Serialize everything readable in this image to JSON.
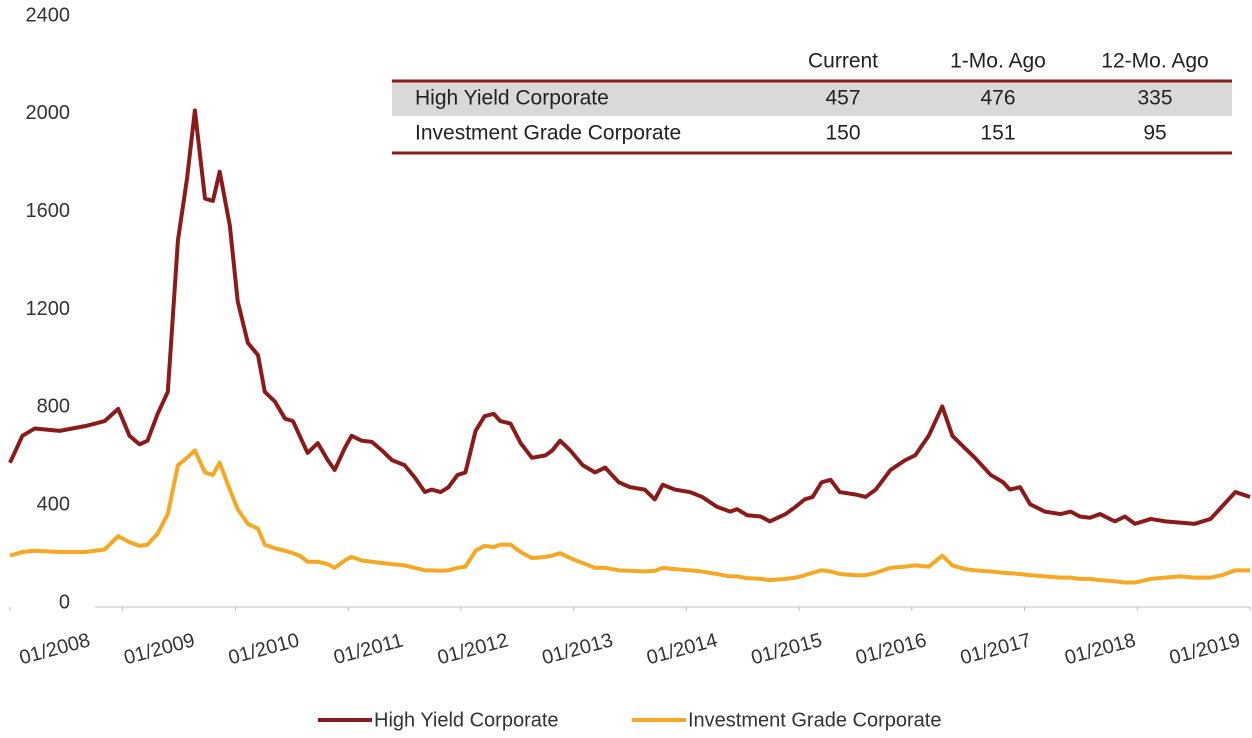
{
  "chart_data": {
    "type": "line",
    "x": [
      2008.0,
      2008.11,
      2008.22,
      2008.44,
      2008.67,
      2008.84,
      2008.96,
      2009.06,
      2009.15,
      2009.22,
      2009.31,
      2009.4,
      2009.49,
      2009.57,
      2009.64,
      2009.73,
      2009.8,
      2009.86,
      2009.95,
      2010.02,
      2010.11,
      2010.2,
      2010.26,
      2010.35,
      2010.44,
      2010.51,
      2010.57,
      2010.64,
      2010.73,
      2010.82,
      2010.88,
      2010.97,
      2011.03,
      2011.12,
      2011.21,
      2011.3,
      2011.39,
      2011.5,
      2011.59,
      2011.68,
      2011.74,
      2011.82,
      2011.89,
      2011.97,
      2012.04,
      2012.13,
      2012.21,
      2012.29,
      2012.35,
      2012.44,
      2012.53,
      2012.63,
      2012.75,
      2012.81,
      2012.88,
      2012.97,
      2013.08,
      2013.19,
      2013.28,
      2013.4,
      2013.5,
      2013.63,
      2013.72,
      2013.79,
      2013.9,
      2014.03,
      2014.14,
      2014.27,
      2014.39,
      2014.45,
      2014.54,
      2014.66,
      2014.74,
      2014.88,
      2014.97,
      2015.05,
      2015.12,
      2015.2,
      2015.28,
      2015.36,
      2015.5,
      2015.59,
      2015.68,
      2015.81,
      2015.94,
      2016.03,
      2016.15,
      2016.27,
      2016.36,
      2016.47,
      2016.56,
      2016.7,
      2016.81,
      2016.87,
      2016.96,
      2017.05,
      2017.18,
      2017.32,
      2017.41,
      2017.49,
      2017.58,
      2017.67,
      2017.8,
      2017.89,
      2017.98,
      2018.12,
      2018.25,
      2018.38,
      2018.51,
      2018.65,
      2018.75,
      2018.87,
      2019.0
    ],
    "series": [
      {
        "name": "High Yield Corporate",
        "color": "#8b1a1a",
        "values": [
          590,
          700,
          730,
          720,
          740,
          760,
          810,
          700,
          665,
          680,
          790,
          880,
          1500,
          1750,
          2030,
          1670,
          1660,
          1780,
          1560,
          1250,
          1080,
          1030,
          880,
          840,
          770,
          760,
          700,
          630,
          670,
          600,
          560,
          650,
          700,
          680,
          675,
          640,
          600,
          580,
          530,
          470,
          480,
          470,
          490,
          540,
          550,
          720,
          780,
          790,
          760,
          750,
          670,
          610,
          620,
          640,
          680,
          640,
          580,
          550,
          570,
          510,
          490,
          480,
          440,
          500,
          480,
          470,
          450,
          410,
          390,
          400,
          375,
          370,
          350,
          380,
          410,
          440,
          450,
          510,
          520,
          470,
          460,
          450,
          480,
          560,
          600,
          620,
          700,
          820,
          700,
          650,
          610,
          540,
          510,
          480,
          490,
          420,
          390,
          380,
          390,
          370,
          365,
          380,
          350,
          370,
          340,
          360,
          350,
          345,
          340,
          360,
          410,
          470,
          450
        ]
      },
      {
        "name": "Investment Grade Corporate",
        "color": "#f7a823",
        "values": [
          210,
          225,
          230,
          225,
          225,
          235,
          290,
          265,
          250,
          255,
          300,
          380,
          580,
          610,
          640,
          550,
          540,
          590,
          480,
          400,
          340,
          320,
          255,
          240,
          230,
          220,
          210,
          185,
          185,
          175,
          160,
          190,
          205,
          190,
          185,
          180,
          175,
          170,
          160,
          150,
          150,
          148,
          150,
          160,
          165,
          230,
          250,
          245,
          255,
          255,
          225,
          200,
          205,
          210,
          220,
          200,
          180,
          160,
          160,
          150,
          148,
          145,
          148,
          160,
          155,
          150,
          145,
          135,
          125,
          125,
          118,
          115,
          110,
          115,
          120,
          130,
          140,
          150,
          145,
          135,
          130,
          130,
          140,
          160,
          165,
          170,
          165,
          210,
          170,
          155,
          150,
          145,
          140,
          138,
          135,
          130,
          125,
          120,
          120,
          115,
          115,
          110,
          105,
          100,
          100,
          115,
          120,
          125,
          120,
          120,
          130,
          150,
          150
        ]
      }
    ],
    "xlim": [
      2008,
      2019
    ],
    "xticks": [
      {
        "value": 2008,
        "label": "01/2008"
      },
      {
        "value": 2009,
        "label": "01/2009"
      },
      {
        "value": 2010,
        "label": "01/2010"
      },
      {
        "value": 2011,
        "label": "01/2011"
      },
      {
        "value": 2012,
        "label": "01/2012"
      },
      {
        "value": 2013,
        "label": "01/2013"
      },
      {
        "value": 2014,
        "label": "01/2014"
      },
      {
        "value": 2015,
        "label": "01/2015"
      },
      {
        "value": 2016,
        "label": "01/2016"
      },
      {
        "value": 2017,
        "label": "01/2017"
      },
      {
        "value": 2018,
        "label": "01/2018"
      },
      {
        "value": 2019,
        "label": "01/2019"
      }
    ],
    "ylim": [
      0,
      2400
    ],
    "yticks": [
      0,
      400,
      800,
      1200,
      1600,
      2000,
      2400
    ],
    "table": {
      "columns": [
        "Current",
        "1-Mo. Ago",
        "12-Mo. Ago"
      ],
      "rows": [
        [
          "High Yield Corporate",
          457,
          476,
          335
        ],
        [
          "Investment Grade Corporate",
          150,
          151,
          95
        ]
      ]
    }
  }
}
